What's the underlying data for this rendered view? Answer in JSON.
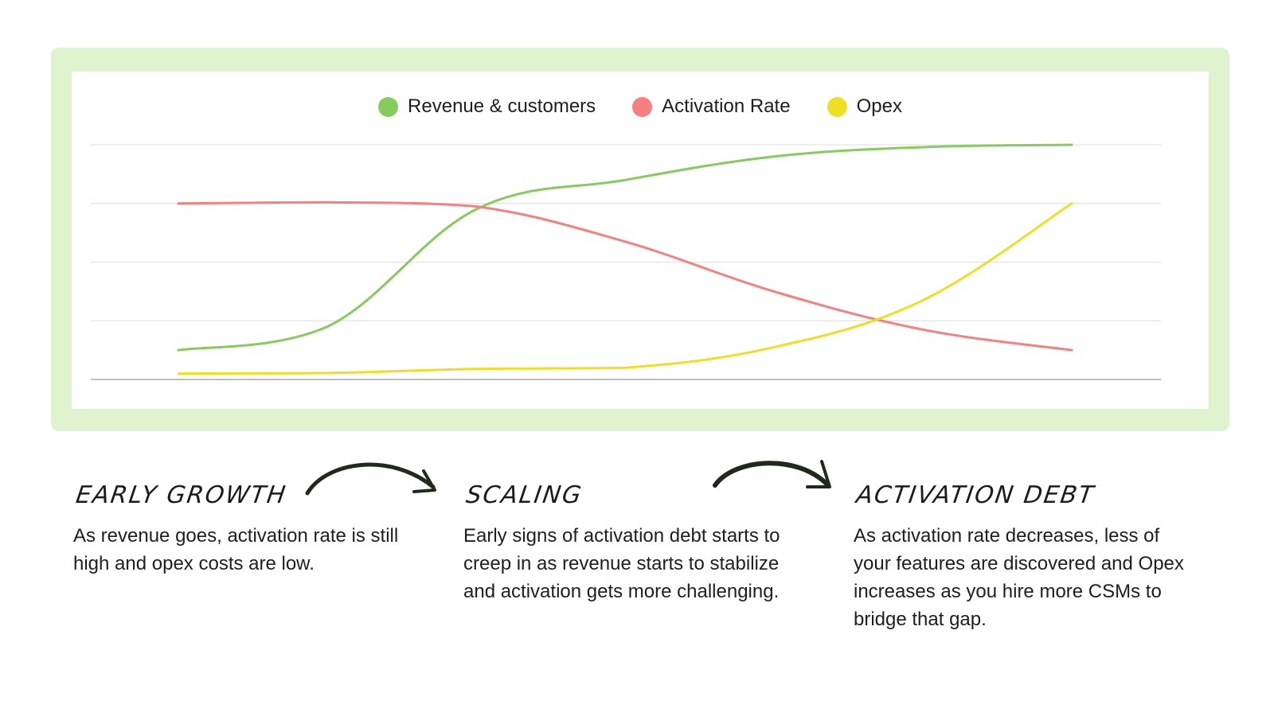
{
  "chart_data": {
    "type": "line",
    "legend": [
      {
        "name": "Revenue & customers",
        "color": "#86cc5c"
      },
      {
        "name": "Activation Rate",
        "color": "#f77f7f"
      },
      {
        "name": "Opex",
        "color": "#eedf23"
      }
    ],
    "x": [
      0,
      1,
      2,
      3,
      4,
      5,
      6
    ],
    "ylim": [
      0,
      4
    ],
    "grid": true,
    "legend_position": "top-center",
    "series": [
      {
        "name": "Revenue & customers",
        "color": "#86cc5c",
        "values": [
          0.5,
          0.9,
          2.9,
          3.4,
          3.8,
          3.96,
          4.0
        ]
      },
      {
        "name": "Activation Rate",
        "color": "#f77f7f",
        "values": [
          3.0,
          3.02,
          2.95,
          2.35,
          1.5,
          0.85,
          0.5
        ]
      },
      {
        "name": "Opex",
        "color": "#eedf23",
        "values": [
          0.1,
          0.11,
          0.18,
          0.2,
          0.55,
          1.35,
          3.0
        ]
      }
    ]
  },
  "phases": [
    {
      "title": "EARLY GROWTH",
      "text": "As revenue goes, activation rate is still high and opex costs are low."
    },
    {
      "title": "SCALING",
      "text": "Early signs of activation debt starts to creep in as revenue starts to stabilize and activation gets more challenging."
    },
    {
      "title": "ACTIVATION DEBT",
      "text": "As activation rate decreases, less of your features are discovered and Opex increases as you hire more CSMs to bridge that gap."
    }
  ],
  "arrow_color": "#1f2a1a"
}
